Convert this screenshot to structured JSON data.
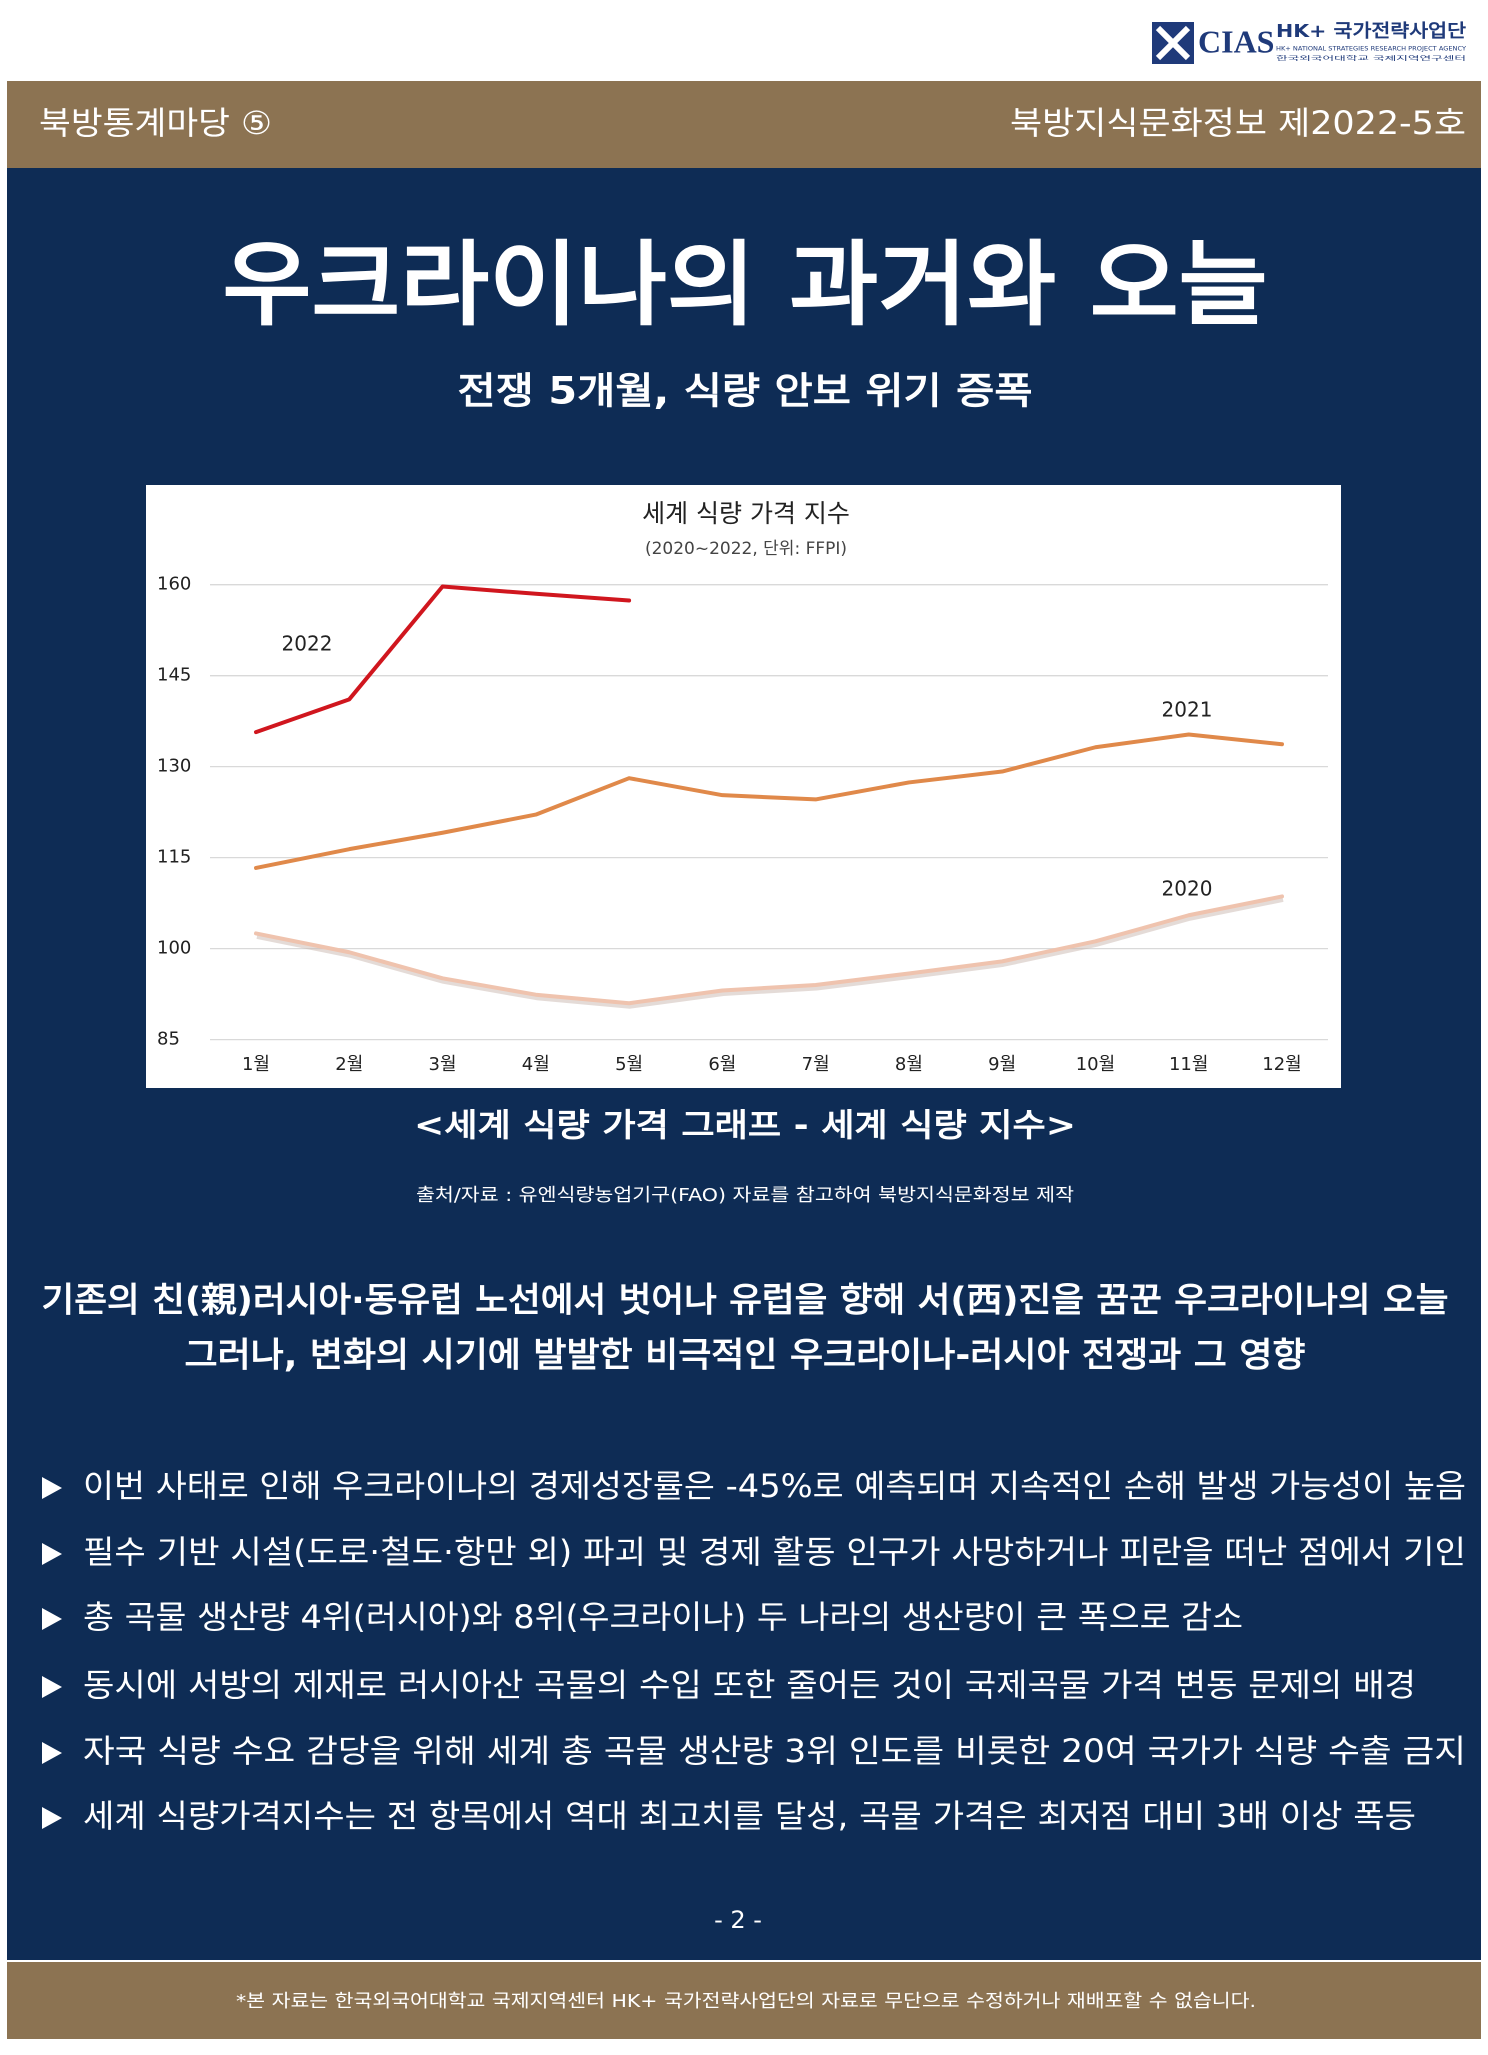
{
  "logo": {
    "mark": "CIAS",
    "name": "HK+ 국가전략사업단",
    "english": "HK+ NATIONAL STRATEGIES RESEARCH PROJECT AGENCY",
    "korean": "한국외국어대학교 국제지역연구센터"
  },
  "header": {
    "section": "북방통계마당 ⑤",
    "issue": "북방지식문화정보 제2022-5호"
  },
  "title": "우크라이나의 과거와 오늘",
  "subtitle": "전쟁 5개월, 식량 안보 위기 증폭",
  "chart_data": {
    "type": "line",
    "title": "세계 식량 가격 지수",
    "subtitle": "(2020~2022, 단위: FFPI)",
    "categories": [
      "1월",
      "2월",
      "3월",
      "4월",
      "5월",
      "6월",
      "7월",
      "8월",
      "9월",
      "10월",
      "11월",
      "12월"
    ],
    "series": [
      {
        "name": "2022",
        "color": "#d0161e",
        "values": [
          135.7,
          141.1,
          159.7,
          158.5,
          157.4,
          null,
          null,
          null,
          null,
          null,
          null,
          null
        ]
      },
      {
        "name": "2021",
        "color": "#e0894a",
        "values": [
          113.3,
          116.4,
          119.1,
          122.1,
          128.1,
          125.3,
          124.6,
          127.4,
          129.2,
          133.2,
          135.3,
          133.7
        ]
      },
      {
        "name": "2020",
        "color": "#efc3ae",
        "values": [
          102.5,
          99.4,
          95.1,
          92.4,
          91.0,
          93.1,
          94.0,
          95.9,
          97.9,
          101.2,
          105.5,
          108.6
        ]
      }
    ],
    "ylim": [
      85,
      160
    ],
    "yticks": [
      85,
      100,
      115,
      130,
      145,
      160
    ],
    "grid": true
  },
  "caption": "<세계 식량 가격 그래프 - 세계 식량 지수>",
  "source": "출처/자료 : 유엔식량농업기구(FAO) 자료를 참고하여 북방지식문화정보 제작",
  "intro": [
    "기존의 친(親)러시아·동유럽 노선에서 벗어나 유럽을 향해 서(西)진을 꿈꾼 우크라이나의 오늘",
    "그러나, 변화의 시기에 발발한 비극적인 우크라이나-러시아 전쟁과 그 영향"
  ],
  "bullets": [
    "이번 사태로 인해 우크라이나의 경제성장률은 -45%로 예측되며 지속적인 손해 발생 가능성이 높음",
    "필수 기반 시설(도로·철도·항만 외) 파괴 및 경제 활동 인구가 사망하거나 피란을 떠난 점에서 기인",
    "총 곡물 생산량 4위(러시아)와 8위(우크라이나) 두 나라의 생산량이 큰 폭으로 감소",
    "동시에 서방의 제재로 러시아산 곡물의 수입 또한 줄어든 것이 국제곡물 가격 변동 문제의 배경",
    "자국 식량 수요 감당을 위해 세계 총 곡물 생산량 3위 인도를 비롯한 20여 국가가 식량 수출 금지",
    "세계 식량가격지수는 전 항목에서 역대 최고치를 달성, 곡물 가격은 최저점 대비 3배 이상 폭등"
  ],
  "page_number": "- 2 -",
  "footer": "*본 자료는 한국외국어대학교 국제지역센터 HK+ 국가전략사업단의 자료로 무단으로 수정하거나 재배포할 수 없습니다."
}
